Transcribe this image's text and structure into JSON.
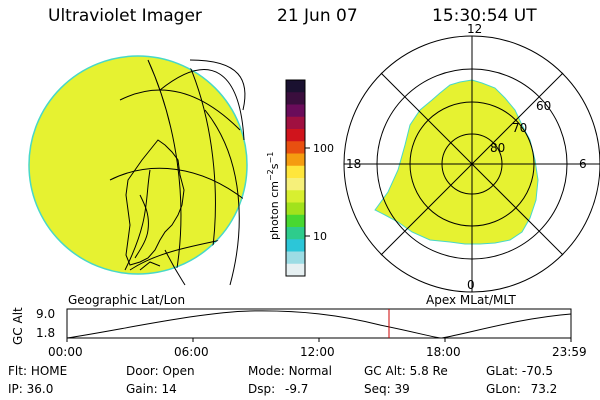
{
  "header": {
    "title": "Ultraviolet Imager",
    "date": "21 Jun 07",
    "time": "15:30:54 UT"
  },
  "colorbar": {
    "unit_label": "photon cm",
    "unit_sup1": "−2",
    "unit_mid": "s",
    "unit_sup2": "−1",
    "tick_high": "100",
    "tick_low": "10",
    "colors": [
      "#1a1130",
      "#3a0e3d",
      "#6a0c5a",
      "#a01040",
      "#d0141c",
      "#e85010",
      "#f59c10",
      "#ffe63c",
      "#f6f07a",
      "#d8ef30",
      "#a2e21c",
      "#48d830",
      "#2ecc8c",
      "#2cc6d8",
      "#9cdce4",
      "#e6f0f2"
    ]
  },
  "left_panel": {
    "caption": "Geographic Lat/Lon",
    "fill_color": "#e6f231"
  },
  "right_panel": {
    "caption": "Apex MLat/MLT",
    "fill_color": "#e6f231",
    "mlt_labels": {
      "top": "12",
      "left": "18",
      "right": "6",
      "bottom": "0"
    },
    "mlat_labels": [
      "60",
      "70",
      "80"
    ]
  },
  "altitude_plot": {
    "ylabel": "GC Alt",
    "y_ticks": [
      "9.0",
      "1.8"
    ],
    "x_ticks": [
      "00:00",
      "06:00",
      "12:00",
      "18:00",
      "23:59"
    ],
    "marker_color": "#cc0000"
  },
  "status": {
    "flt_label": "Flt:",
    "flt_value": "HOME",
    "ip_label": "IP:",
    "ip_value": "36.0",
    "door_label": "Door:",
    "door_value": "Open",
    "gain_label": "Gain:",
    "gain_value": "14",
    "mode_label": "Mode:",
    "mode_value": "Normal",
    "dsp_label": "Dsp:",
    "dsp_value": "-9.7",
    "gcalt_label": "GC Alt:",
    "gcalt_value": "5.8 Re",
    "seq_label": "Seq:",
    "seq_value": "39",
    "glat_label": "GLat:",
    "glat_value": "-70.5",
    "glon_label": "GLon:",
    "glon_value": "73.2"
  }
}
